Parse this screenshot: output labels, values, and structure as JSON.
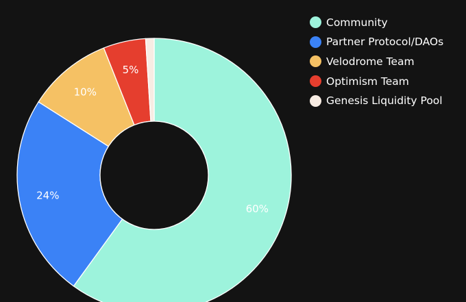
{
  "chart_data": {
    "type": "pie",
    "categories": [
      "Community",
      "Partner Protocol/DAOs",
      "Velodrome Team",
      "Optimism Team",
      "Genesis Liquidity Pool"
    ],
    "values": [
      60,
      24,
      10,
      5,
      1
    ],
    "data_labels": [
      "60%",
      "24%",
      "10%",
      "5%",
      ""
    ],
    "colors": [
      "#9df3dc",
      "#3b82f6",
      "#f5c164",
      "#e53e2e",
      "#f7ece3"
    ],
    "donut": true,
    "legend_position": "top-right"
  },
  "background": "#131313",
  "slice_border": "#ffffff",
  "label_color": "#ffffff"
}
